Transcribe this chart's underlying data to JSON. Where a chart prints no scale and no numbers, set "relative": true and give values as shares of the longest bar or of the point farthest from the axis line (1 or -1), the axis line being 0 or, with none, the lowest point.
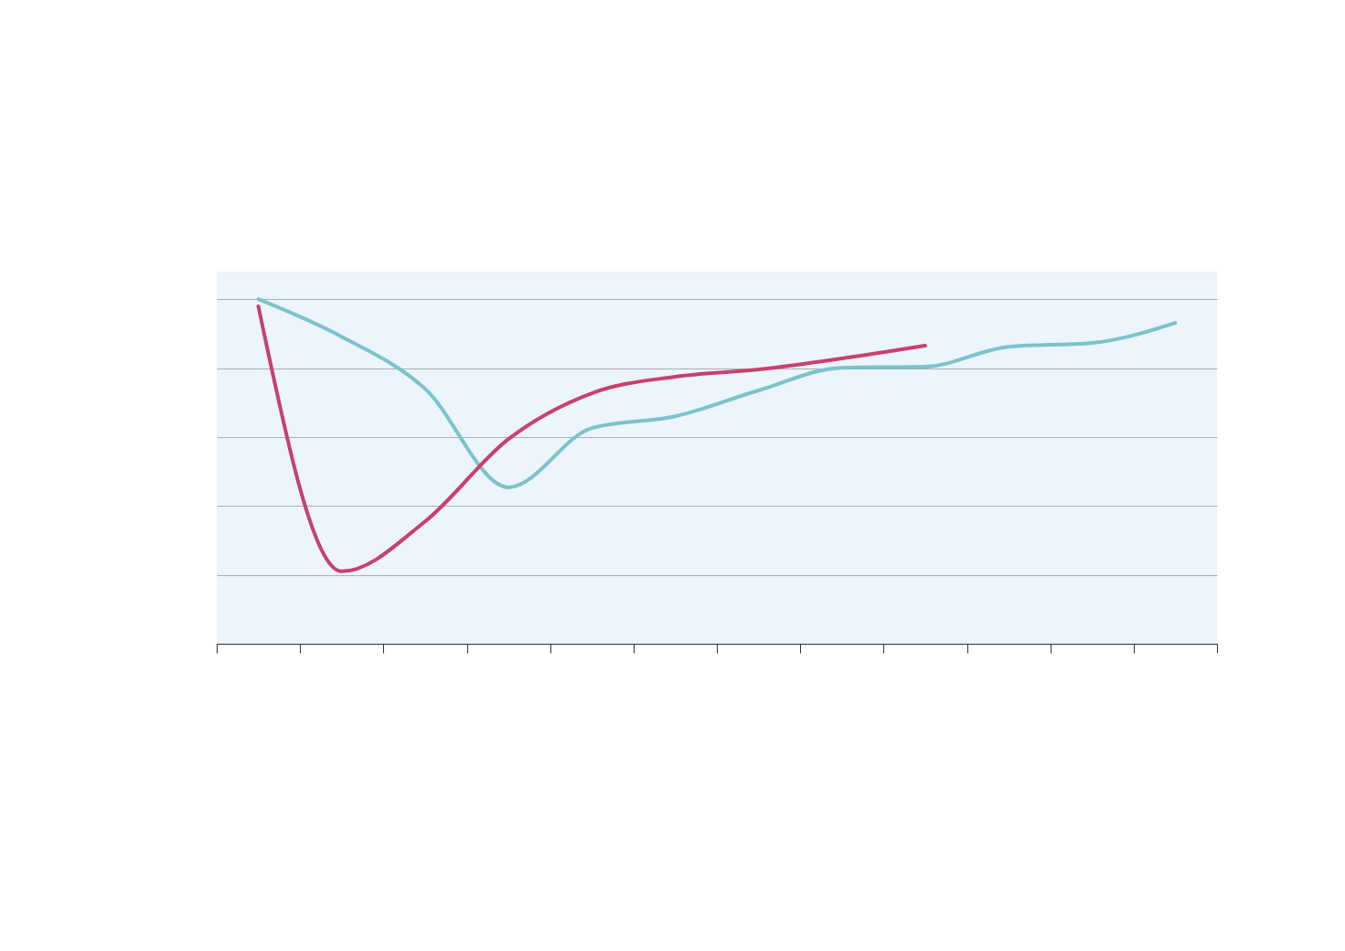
{
  "chart_data": {
    "type": "line",
    "relative": true,
    "grid": "y",
    "legend": false,
    "line_style": "solid",
    "marker": "none",
    "categories": [
      null,
      null,
      null,
      null,
      null,
      null,
      null,
      null,
      null,
      null,
      null,
      null
    ],
    "series": [
      {
        "color": "#7bc3cb",
        "values": [
          1,
          0.891,
          0.74,
          0.454,
          0.626,
          0.66,
          0.735,
          0.801,
          0.804,
          0.862,
          0.873,
          0.931
        ]
      },
      {
        "color": "#c8406e",
        "values": [
          0.979,
          0.21,
          0.355,
          0.594,
          0.727,
          0.775,
          0.796,
          0.828,
          0.865,
          null,
          null,
          null
        ]
      }
    ]
  }
}
